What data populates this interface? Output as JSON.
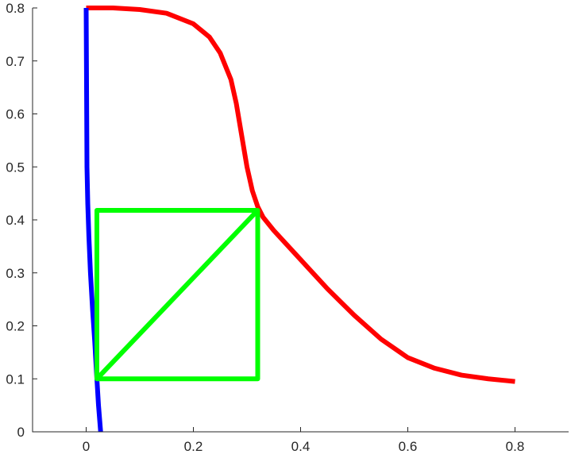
{
  "chart_data": {
    "type": "line",
    "title": "",
    "xlabel": "",
    "ylabel": "",
    "xlim": [
      -0.1,
      0.9
    ],
    "ylim": [
      0,
      0.8
    ],
    "xticks": [
      0,
      0.2,
      0.4,
      0.6,
      0.8
    ],
    "yticks": [
      0,
      0.1,
      0.2,
      0.3,
      0.4,
      0.5,
      0.6,
      0.7,
      0.8
    ],
    "xtick_labels": [
      "0",
      "0.2",
      "0.4",
      "0.6",
      "0.8"
    ],
    "ytick_labels": [
      "0",
      "0.1",
      "0.2",
      "0.3",
      "0.4",
      "0.5",
      "0.6",
      "0.7",
      "0.8"
    ],
    "grid": false,
    "legend": "none",
    "series": [
      {
        "color": "#ff0000",
        "x": [
          0.0,
          0.05,
          0.1,
          0.15,
          0.2,
          0.23,
          0.25,
          0.27,
          0.28,
          0.29,
          0.3,
          0.31,
          0.32,
          0.33,
          0.35,
          0.4,
          0.45,
          0.5,
          0.55,
          0.6,
          0.65,
          0.7,
          0.75,
          0.8
        ],
        "y": [
          0.8,
          0.8,
          0.797,
          0.79,
          0.77,
          0.745,
          0.715,
          0.665,
          0.62,
          0.56,
          0.5,
          0.455,
          0.425,
          0.405,
          0.38,
          0.325,
          0.27,
          0.22,
          0.175,
          0.14,
          0.12,
          0.107,
          0.1,
          0.095
        ]
      },
      {
        "color": "#0000ff",
        "x": [
          0.0,
          0.0005,
          0.001,
          0.0015,
          0.003,
          0.005,
          0.008,
          0.012,
          0.016,
          0.02,
          0.023,
          0.027
        ],
        "y": [
          0.8,
          0.7,
          0.6,
          0.5,
          0.43,
          0.37,
          0.3,
          0.23,
          0.17,
          0.1,
          0.05,
          0.0
        ]
      },
      {
        "color": "#00ff00",
        "x": [
          0.02,
          0.02,
          0.32,
          0.32,
          0.02,
          0.32
        ],
        "y": [
          0.1,
          0.418,
          0.418,
          0.1,
          0.1,
          0.418
        ]
      }
    ]
  }
}
